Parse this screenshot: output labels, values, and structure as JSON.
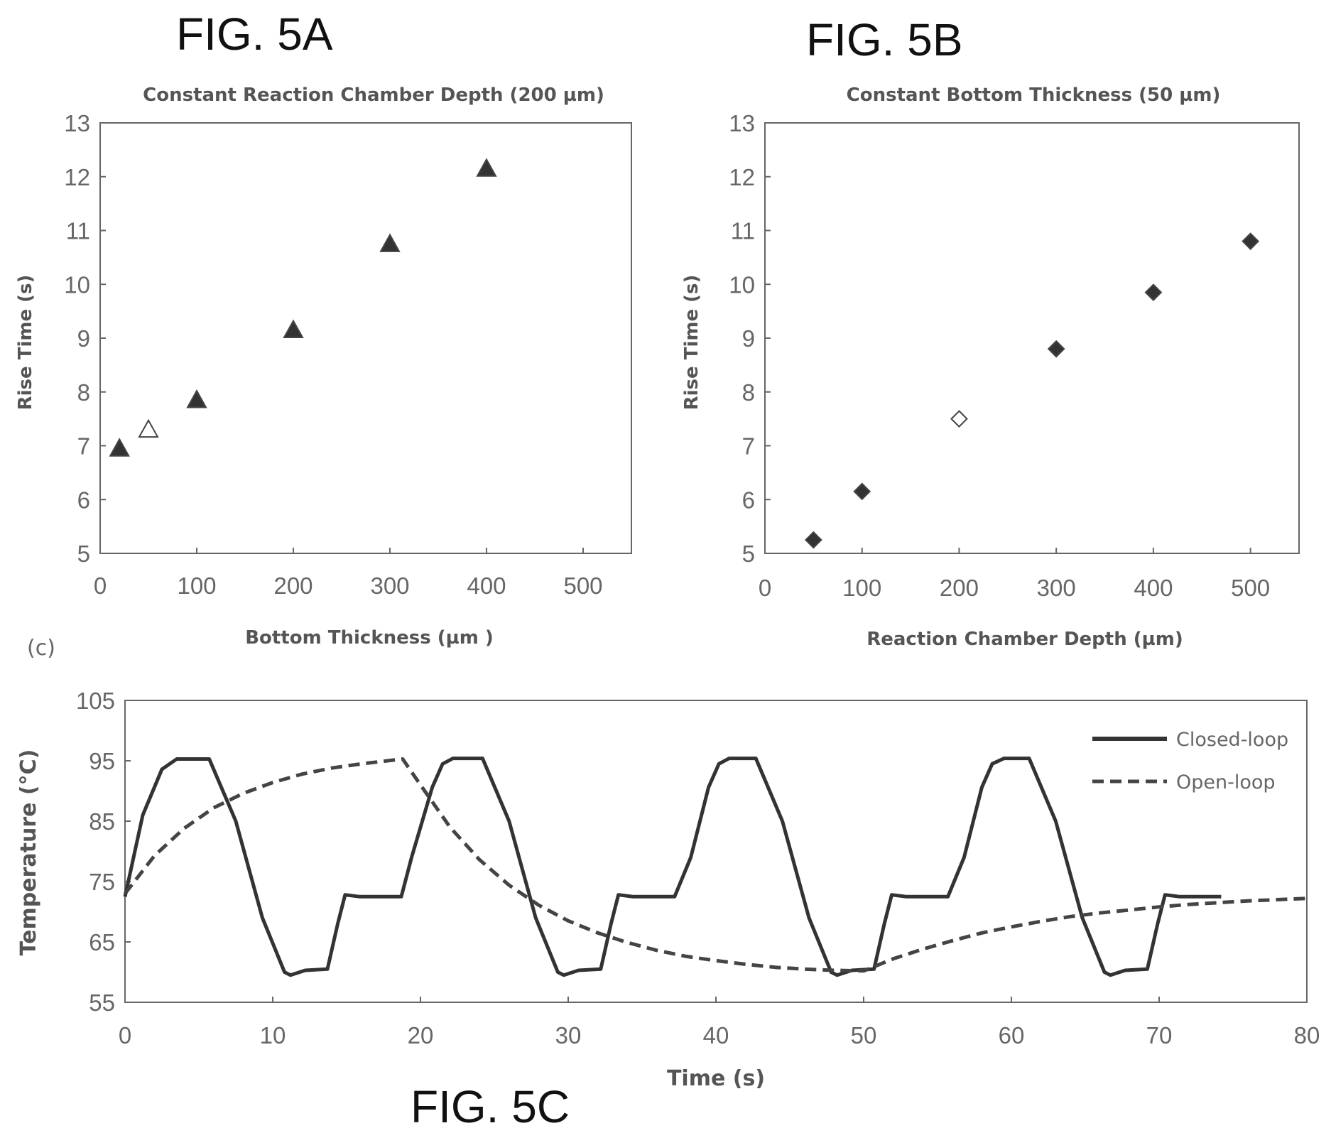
{
  "figure_labels": {
    "a": "FIG. 5A",
    "b": "FIG. 5B",
    "c": "FIG. 5C",
    "c_panel": "(c)"
  },
  "chart_data": [
    {
      "id": "a",
      "type": "scatter",
      "title": "Constant Reaction Chamber Depth (200 µm)",
      "xlabel": "Bottom Thickness (µm )",
      "ylabel": "Rise Time (s)",
      "xlim": [
        0,
        550
      ],
      "ylim": [
        5,
        13
      ],
      "xticks": [
        0,
        100,
        200,
        300,
        400,
        500
      ],
      "yticks": [
        5,
        6,
        7,
        8,
        9,
        10,
        11,
        12,
        13
      ],
      "marker": "triangle",
      "points": [
        {
          "x": 20,
          "y": 6.95,
          "filled": true
        },
        {
          "x": 50,
          "y": 7.3,
          "filled": false
        },
        {
          "x": 100,
          "y": 7.85,
          "filled": true
        },
        {
          "x": 200,
          "y": 9.15,
          "filled": true
        },
        {
          "x": 300,
          "y": 10.75,
          "filled": true
        },
        {
          "x": 400,
          "y": 12.15,
          "filled": true
        }
      ]
    },
    {
      "id": "b",
      "type": "scatter",
      "title": "Constant Bottom Thickness (50 µm)",
      "xlabel": "Reaction Chamber Depth (µm)",
      "ylabel": "Rise Time (s)",
      "xlim": [
        0,
        550
      ],
      "ylim": [
        5,
        13
      ],
      "xticks": [
        0,
        100,
        200,
        300,
        400,
        500
      ],
      "yticks": [
        5,
        6,
        7,
        8,
        9,
        10,
        11,
        12,
        13
      ],
      "marker": "diamond",
      "points": [
        {
          "x": 50,
          "y": 5.25,
          "filled": true
        },
        {
          "x": 100,
          "y": 6.15,
          "filled": true
        },
        {
          "x": 200,
          "y": 7.5,
          "filled": false
        },
        {
          "x": 300,
          "y": 8.8,
          "filled": true
        },
        {
          "x": 400,
          "y": 9.85,
          "filled": true
        },
        {
          "x": 500,
          "y": 10.8,
          "filled": true
        }
      ]
    },
    {
      "id": "c",
      "type": "line",
      "title": "",
      "xlabel": "Time (s)",
      "ylabel": "Temperature (°C)",
      "xlim": [
        0,
        80
      ],
      "ylim": [
        55,
        105
      ],
      "xticks": [
        0,
        10,
        20,
        30,
        40,
        50,
        60,
        70,
        80
      ],
      "yticks": [
        55,
        65,
        75,
        85,
        95,
        105
      ],
      "legend_position": "top-right",
      "series": [
        {
          "name": "Closed-loop",
          "style": "solid",
          "x": [
            0,
            1.2,
            2.5,
            3.5,
            5.7,
            7.5,
            9.3,
            10.8,
            11.2,
            12.2,
            13.7,
            14.4,
            14.9,
            15.9,
            18.7,
            19.4,
            20.8,
            21.5,
            22.2,
            24.2,
            26,
            27.8,
            29.3,
            29.7,
            30.7,
            32.2,
            32.9,
            33.4,
            34.4,
            37.2,
            38.3,
            39.5,
            40.2,
            40.9,
            42.7,
            44.5,
            46.3,
            47.8,
            48.2,
            49.2,
            50.7,
            51.4,
            51.9,
            52.9,
            55.7,
            56.8,
            58,
            58.7,
            59.5,
            61.2,
            63,
            64.8,
            66.3,
            66.7,
            67.7,
            69.2,
            69.9,
            70.4,
            71.4,
            74.2
          ],
          "y": [
            72.5,
            86,
            93.6,
            95.3,
            95.3,
            85,
            69,
            60,
            59.5,
            60.3,
            60.5,
            68,
            72.8,
            72.5,
            72.5,
            79,
            90.6,
            94.5,
            95.4,
            95.4,
            85,
            69,
            60,
            59.5,
            60.3,
            60.5,
            68,
            72.8,
            72.5,
            72.5,
            79,
            90.6,
            94.5,
            95.4,
            95.4,
            85,
            69,
            60,
            59.5,
            60.3,
            60.5,
            68,
            72.8,
            72.5,
            72.5,
            79,
            90.6,
            94.5,
            95.4,
            95.4,
            85,
            69,
            60,
            59.5,
            60.3,
            60.5,
            68,
            72.8,
            72.5,
            72.5
          ]
        },
        {
          "name": "Open-loop",
          "style": "dashed",
          "x": [
            0,
            2,
            4,
            6,
            8,
            10,
            12,
            14,
            16,
            18.8,
            20,
            22,
            24,
            26,
            28,
            30,
            32,
            34,
            36,
            38,
            40,
            42,
            44,
            46,
            48,
            50,
            52,
            54,
            56,
            58,
            60,
            62,
            64,
            66,
            68,
            70,
            72,
            74,
            76,
            78,
            80
          ],
          "y": [
            73,
            79.3,
            83.8,
            87.2,
            89.6,
            91.4,
            92.8,
            93.8,
            94.5,
            95.3,
            91,
            84,
            78.6,
            74.4,
            71.1,
            68.5,
            66.5,
            64.9,
            63.6,
            62.6,
            61.9,
            61.3,
            60.8,
            60.5,
            60.3,
            60.2,
            62.2,
            63.8,
            65.2,
            66.5,
            67.5,
            68.4,
            69.2,
            69.8,
            70.3,
            70.8,
            71.2,
            71.5,
            71.8,
            72,
            72.2
          ]
        }
      ]
    }
  ]
}
